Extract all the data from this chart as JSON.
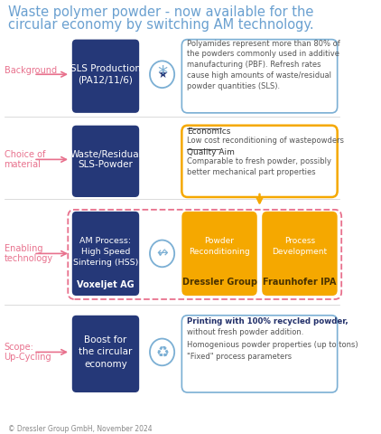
{
  "title_line1": "Waste polymer powder - now available for the",
  "title_line2": "circular economy by switching AM technology.",
  "bg_color": "#ffffff",
  "dark_blue": "#253878",
  "pink": "#e8718d",
  "yellow": "#f5a800",
  "border_blue": "#7bafd4",
  "border_yellow": "#f5a800",
  "footer": "© Dressler Group GmbH, November 2024",
  "row0": {
    "label": "Background",
    "box_text": "SLS Production\n(PA12/11/6)",
    "right_text": "Polyamides represent more than 80% of\nthe powders commonly used in additive\nmanufacturing (PBF). Refresh rates\ncause high amounts of waste/residual\npowder quantities (SLS).",
    "right_border": "blue"
  },
  "row1": {
    "label": "Choice of\nmaterial",
    "box_text": "Waste/Residual\nSLS-Powder",
    "right_economics": "Economics",
    "right_econ_body": "Low cost reconditioning of wastepowders",
    "right_quality": "Quality Aim",
    "right_qual_body": "Comparable to fresh powder, possibly\nbetter mechanical part properties",
    "right_border": "yellow"
  },
  "row2": {
    "label": "Enabling\ntechnology",
    "box_text": "AM Process:\nHigh Speed\nSintering (HSS)",
    "box_bold": "Voxeljet AG",
    "sub1_title": "Powder\nReconditioning",
    "sub1_bold": "Dressler Group",
    "sub2_title": "Process\nDevelopment",
    "sub2_bold": "Fraunhofer IPA",
    "right_border": "dashed_pink"
  },
  "row3": {
    "label": "Scope:\nUp-Cycling",
    "box_text": "Boost for\nthe circular\neconomy",
    "right_bold": "Printing with 100% recycled powder,",
    "right_line2": "without fresh powder addition.",
    "right_line3": "Homogenious powder properties (up to tons)",
    "right_line4": "\"Fixed\" process parameters",
    "right_border": "blue"
  }
}
